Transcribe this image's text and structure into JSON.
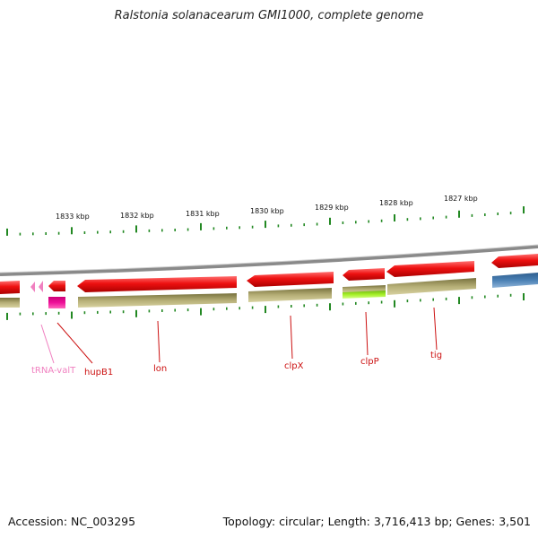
{
  "title": "Ralstonia solanacearum GMI1000, complete genome",
  "footer": {
    "accession": "Accession: NC_003295",
    "topology": "Topology: circular; Length: 3,716,413 bp; Genes: 3,501"
  },
  "colors": {
    "gene_forward": "#ee1111",
    "gene_reverse": "#ee1111",
    "cds_olive": "#a9a26a",
    "cds_blue": "#4a80b4",
    "cds_green": "#99ee22",
    "trna": "#f080c0",
    "hupB1_box": "#ee1199",
    "tick_green": "#228822",
    "backbone": "#8a8a8a"
  },
  "scale_labels": [
    "1833 kbp",
    "1832 kbp",
    "1831 kbp",
    "1830 kbp",
    "1829 kbp",
    "1828 kbp",
    "1827 kbp"
  ],
  "genes": [
    {
      "name": "tRNA-valT",
      "color": "#f080c0"
    },
    {
      "name": "hupB1",
      "color": "#cc1111"
    },
    {
      "name": "lon",
      "color": "#cc1111"
    },
    {
      "name": "clpX",
      "color": "#cc1111"
    },
    {
      "name": "clpP",
      "color": "#cc1111"
    },
    {
      "name": "tig",
      "color": "#cc1111"
    }
  ]
}
